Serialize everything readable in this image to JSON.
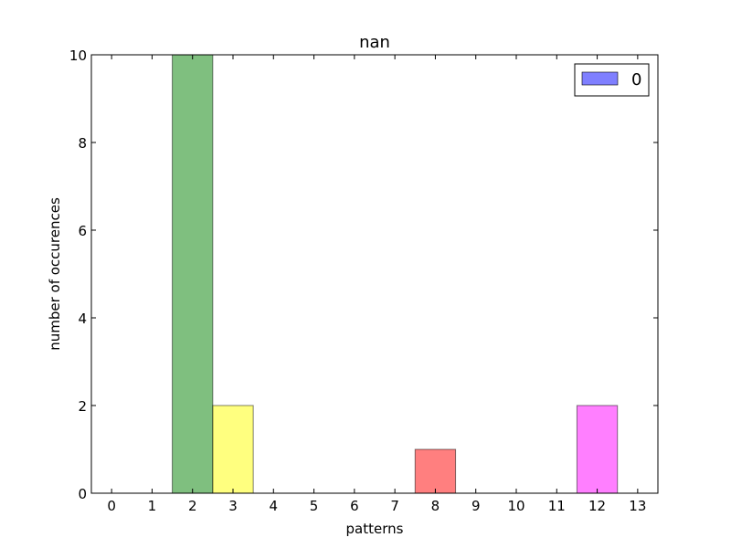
{
  "chart_data": {
    "type": "bar",
    "title": "nan",
    "xlabel": "patterns",
    "ylabel": "number of occurences",
    "categories": [
      "0",
      "1",
      "2",
      "3",
      "4",
      "5",
      "6",
      "7",
      "8",
      "9",
      "10",
      "11",
      "12",
      "13"
    ],
    "values": [
      0,
      0,
      10,
      2,
      0,
      0,
      0,
      0,
      1,
      0,
      0,
      0,
      2,
      0
    ],
    "bar_colors": [
      "#0000ff",
      "#0000ff",
      "#008000",
      "#ffff00",
      "#0000ff",
      "#0000ff",
      "#0000ff",
      "#0000ff",
      "#ff0000",
      "#0000ff",
      "#0000ff",
      "#0000ff",
      "#ff00ff",
      "#0000ff"
    ],
    "bar_alpha": 0.5,
    "xlim": [
      -0.5,
      13.5
    ],
    "ylim": [
      0,
      10
    ],
    "yticks": [
      "0",
      "2",
      "4",
      "6",
      "8",
      "10"
    ],
    "grid": false,
    "legend": {
      "position": "top-right",
      "entries": [
        {
          "label": "0",
          "color": "#0000ff"
        }
      ]
    }
  }
}
